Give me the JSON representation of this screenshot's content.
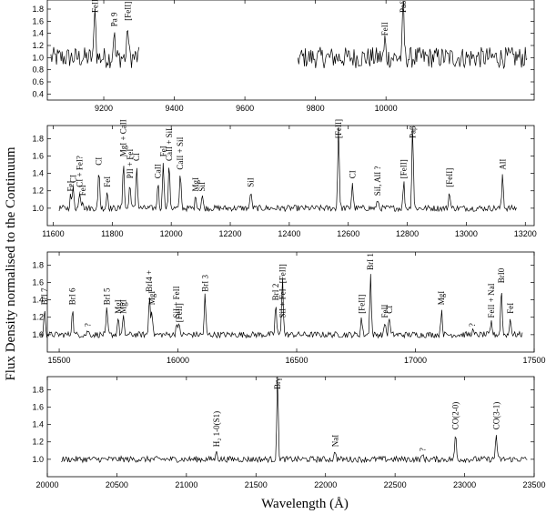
{
  "chart_data": [
    {
      "type": "line",
      "xlabel": "",
      "ylabel": "",
      "xlim": [
        9040,
        10420
      ],
      "ylim": [
        0.3,
        1.95
      ],
      "xticks": [
        9200,
        9400,
        9600,
        9800,
        10000
      ],
      "yticks": [
        0.4,
        0.6,
        0.8,
        1.0,
        1.2,
        1.4,
        1.6,
        1.8
      ],
      "segments": [
        [
          9050,
          9300
        ],
        [
          9750,
          10400
        ]
      ],
      "features": [
        {
          "x": 9175,
          "peak": 1.95,
          "label": "FeII"
        },
        {
          "x": 9229,
          "peak": 1.45,
          "label": "Pa 9"
        },
        {
          "x": 9268,
          "peak": 1.55,
          "label": "[FeII]"
        },
        {
          "x": 9997,
          "peak": 1.3,
          "label": "FeII"
        },
        {
          "x": 10049,
          "peak": 1.95,
          "label": "Paδ"
        }
      ]
    },
    {
      "type": "line",
      "xlabel": "",
      "ylabel": "",
      "xlim": [
        11580,
        13230
      ],
      "ylim": [
        0.8,
        1.95
      ],
      "xticks": [
        11600,
        11800,
        12000,
        12200,
        12400,
        12600,
        12800,
        13000,
        13200
      ],
      "yticks": [
        1.0,
        1.2,
        1.4,
        1.6,
        1.8
      ],
      "segments": [
        [
          11620,
          13170
        ]
      ],
      "features": [
        {
          "x": 11659,
          "peak": 1.15,
          "label": "FeI"
        },
        {
          "x": 11668,
          "peak": 1.25,
          "label": "CI"
        },
        {
          "x": 11690,
          "peak": 1.2,
          "label": "CI + FeI?"
        },
        {
          "x": 11700,
          "peak": 1.1,
          "label": "FeI"
        },
        {
          "x": 11755,
          "peak": 1.45,
          "label": "CI"
        },
        {
          "x": 11783,
          "peak": 1.2,
          "label": "FeI"
        },
        {
          "x": 11838,
          "peak": 1.55,
          "label": "MgI + CaII"
        },
        {
          "x": 11860,
          "peak": 1.3,
          "label": "PII + FeI"
        },
        {
          "x": 11883,
          "peak": 1.5,
          "label": "CI"
        },
        {
          "x": 11955,
          "peak": 1.3,
          "label": "CaII"
        },
        {
          "x": 11973,
          "peak": 1.55,
          "label": "FeI"
        },
        {
          "x": 11993,
          "peak": 1.5,
          "label": "CaII + SiI"
        },
        {
          "x": 12031,
          "peak": 1.4,
          "label": "CaII + SiI"
        },
        {
          "x": 12083,
          "peak": 1.15,
          "label": "MgI"
        },
        {
          "x": 12105,
          "peak": 1.15,
          "label": "SiI"
        },
        {
          "x": 12270,
          "peak": 1.2,
          "label": "SiI"
        },
        {
          "x": 12567,
          "peak": 1.95,
          "label": "[FeII]"
        },
        {
          "x": 12614,
          "peak": 1.3,
          "label": "CI"
        },
        {
          "x": 12700,
          "peak": 1.1,
          "label": "SiI, AlI ?"
        },
        {
          "x": 12788,
          "peak": 1.3,
          "label": "[FeII]"
        },
        {
          "x": 12818,
          "peak": 1.95,
          "label": "Paβ"
        },
        {
          "x": 12943,
          "peak": 1.2,
          "label": "[FeII]"
        },
        {
          "x": 13123,
          "peak": 1.4,
          "label": "AlI"
        }
      ]
    },
    {
      "type": "line",
      "xlabel": "",
      "ylabel": "",
      "xlim": [
        15450,
        17500
      ],
      "ylim": [
        0.8,
        1.95
      ],
      "xticks": [
        15500,
        16000,
        16500,
        17000,
        17500
      ],
      "yticks": [
        1.0,
        1.2,
        1.4,
        1.6,
        1.8
      ],
      "segments": [
        [
          15420,
          17450
        ]
      ],
      "features": [
        {
          "x": 15439,
          "peak": 1.3,
          "label": "BrI 7"
        },
        {
          "x": 15556,
          "peak": 1.3,
          "label": "BrI 6"
        },
        {
          "x": 15621,
          "peak": 1.05,
          "label": "?"
        },
        {
          "x": 15701,
          "peak": 1.3,
          "label": "BrI 5"
        },
        {
          "x": 15748,
          "peak": 1.2,
          "label": "MgI"
        },
        {
          "x": 15770,
          "peak": 1.2,
          "label": "MgI"
        },
        {
          "x": 15880,
          "peak": 1.45,
          "label": "BrI4 +"
        },
        {
          "x": 15890,
          "peak": 1.3,
          "label": "MgI"
        },
        {
          "x": 15995,
          "peak": 1.15,
          "label": "SiI + FeII"
        },
        {
          "x": 16005,
          "peak": 1.1,
          "label": "[FeII]"
        },
        {
          "x": 16114,
          "peak": 1.45,
          "label": "BrI 3"
        },
        {
          "x": 16440,
          "peak": 1.15,
          "label": "SiI + FeI"
        },
        {
          "x": 16412,
          "peak": 1.35,
          "label": "BrI 2"
        },
        {
          "x": 16440,
          "peak": 1.55,
          "label": "[FeII]"
        },
        {
          "x": 16773,
          "peak": 1.2,
          "label": "[FeII]"
        },
        {
          "x": 16811,
          "peak": 1.7,
          "label": "BrI 1"
        },
        {
          "x": 16872,
          "peak": 1.15,
          "label": "FeII"
        },
        {
          "x": 16890,
          "peak": 1.2,
          "label": "CI"
        },
        {
          "x": 17110,
          "peak": 1.3,
          "label": "MgI"
        },
        {
          "x": 17240,
          "peak": 1.05,
          "label": "?"
        },
        {
          "x": 17320,
          "peak": 1.15,
          "label": "FeII + NaI"
        },
        {
          "x": 17362,
          "peak": 1.55,
          "label": "BrI0"
        },
        {
          "x": 17400,
          "peak": 1.2,
          "label": "FeI"
        }
      ]
    },
    {
      "type": "line",
      "xlabel": "",
      "ylabel": "",
      "xlim": [
        20000,
        23500
      ],
      "ylim": [
        0.8,
        1.95
      ],
      "xticks": [
        20000,
        20500,
        21000,
        21500,
        22000,
        22500,
        23000,
        23500
      ],
      "yticks": [
        1.0,
        1.2,
        1.4,
        1.6,
        1.8
      ],
      "segments": [
        [
          20100,
          23450
        ]
      ],
      "features": [
        {
          "x": 21218,
          "peak": 1.1,
          "label": "H₂ 1-0(S1)"
        },
        {
          "x": 21655,
          "peak": 1.95,
          "label": "Brγ"
        },
        {
          "x": 22070,
          "peak": 1.1,
          "label": "NaI"
        },
        {
          "x": 22700,
          "peak": 1.05,
          "label": "?"
        },
        {
          "x": 22935,
          "peak": 1.3,
          "label": "CO(2-0)"
        },
        {
          "x": 23227,
          "peak": 1.3,
          "label": "CO(3-1)"
        }
      ]
    }
  ],
  "axes": {
    "xlabel": "Wavelength (Å)",
    "ylabel": "Flux Density normalised to the Continuum"
  }
}
